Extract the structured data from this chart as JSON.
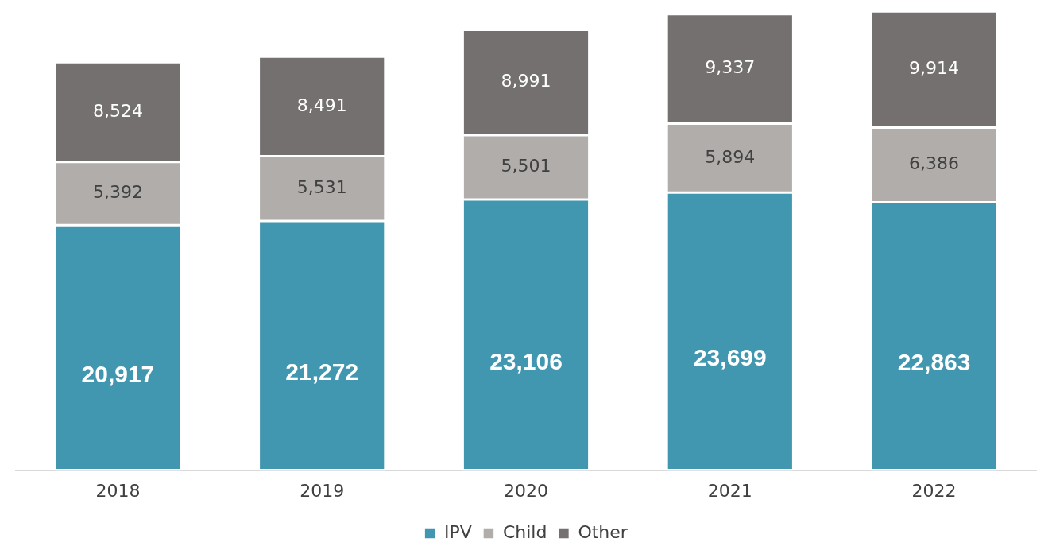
{
  "chart_data": {
    "type": "bar",
    "stacked": true,
    "categories": [
      "2018",
      "2019",
      "2020",
      "2021",
      "2022"
    ],
    "series": [
      {
        "name": "IPV",
        "color": "#4196b0",
        "values": [
          20917,
          21272,
          23106,
          23699,
          22863
        ],
        "value_labels": [
          "20,917",
          "21,272",
          "23,106",
          "23,699",
          "22,863"
        ]
      },
      {
        "name": "Child",
        "color": "#b0adab",
        "values": [
          5392,
          5531,
          5501,
          5894,
          6386
        ],
        "value_labels": [
          "5,392",
          "5,531",
          "5,501",
          "5,894",
          "6,386"
        ]
      },
      {
        "name": "Other",
        "color": "#747070",
        "values": [
          8524,
          8491,
          8991,
          9337,
          9914
        ],
        "value_labels": [
          "8,524",
          "8,491",
          "8,991",
          "9,337",
          "9,914"
        ]
      }
    ],
    "legend": "bottom",
    "grid": false,
    "tick_labels": "x"
  }
}
